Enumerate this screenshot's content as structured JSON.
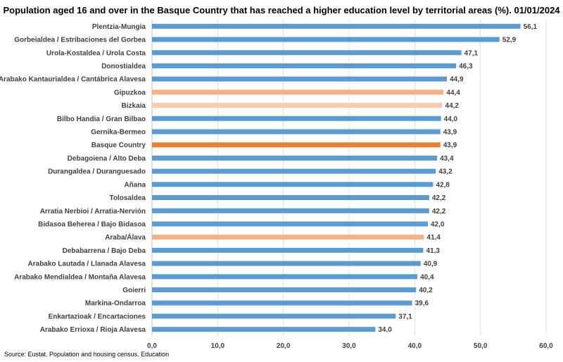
{
  "chart_data": {
    "type": "bar",
    "orientation": "horizontal",
    "title": "Population aged 16 and over in the Basque Country that has reached a higher education level by territorial areas (%). 01/01/2024",
    "source": "Source: Eustat. Population and housing census. Education",
    "categories": [
      "Plentzia-Mungia",
      "Gorbeialdea / Estribaciones del Gorbea",
      "Urola-Kostaldea  /  Urola Costa",
      "Donostialdea",
      "Arabako Kantaurialdea / Cantábrica Alavesa",
      "Gipuzkoa",
      "Bizkaia",
      "Bilbo Handia  /  Gran Bilbao",
      "Gernika-Bermeo",
      "Basque Country",
      "Debagoiena  /  Alto Deba",
      "Durangaldea  /  Duranguesado",
      "Añana",
      "Tolosaldea",
      "Arratia Nerbioi  /  Arratia-Nervión",
      "Bidasoa Beherea  /  Bajo Bidasoa",
      "Araba/Álava",
      "Debabarrena / Bajo Deba",
      "Arabako Lautada  /  Llanada Alavesa",
      "Arabako Mendialdea  /  Montaña Alavesa",
      "Goierri",
      "Markina-Ondarroa",
      "Enkartazioak  /  Encartaciones",
      "Arabako Errioxa / Rioja Alavesa"
    ],
    "values": [
      56.1,
      52.9,
      47.1,
      46.3,
      44.9,
      44.4,
      44.2,
      44.0,
      43.9,
      43.9,
      43.4,
      43.2,
      42.8,
      42.2,
      42.2,
      42.0,
      41.4,
      41.3,
      40.9,
      40.4,
      40.2,
      39.6,
      37.1,
      34.0
    ],
    "value_labels": [
      "56,1",
      "52,9",
      "47,1",
      "46,3",
      "44,9",
      "44,4",
      "44,2",
      "44,0",
      "43,9",
      "43,9",
      "43,4",
      "43,2",
      "42,8",
      "42,2",
      "42,2",
      "42,0",
      "41,4",
      "41,3",
      "40,9",
      "40,4",
      "40,2",
      "39,6",
      "37,1",
      "34,0"
    ],
    "bar_colors": [
      "#5b9bd5",
      "#5b9bd5",
      "#5b9bd5",
      "#5b9bd5",
      "#5b9bd5",
      "#f4b183",
      "#f8cbad",
      "#5b9bd5",
      "#5b9bd5",
      "#ed7d31",
      "#5b9bd5",
      "#5b9bd5",
      "#5b9bd5",
      "#5b9bd5",
      "#5b9bd5",
      "#5b9bd5",
      "#f4b183",
      "#5b9bd5",
      "#5b9bd5",
      "#5b9bd5",
      "#5b9bd5",
      "#5b9bd5",
      "#5b9bd5",
      "#5b9bd5"
    ],
    "xlim": [
      0,
      60
    ],
    "x_ticks": [
      0,
      10,
      20,
      30,
      40,
      50,
      60
    ],
    "x_tick_labels": [
      "0,0",
      "10,0",
      "20,0",
      "30,0",
      "40,0",
      "50,0",
      "60,0"
    ],
    "grid": true,
    "legend": "none"
  }
}
